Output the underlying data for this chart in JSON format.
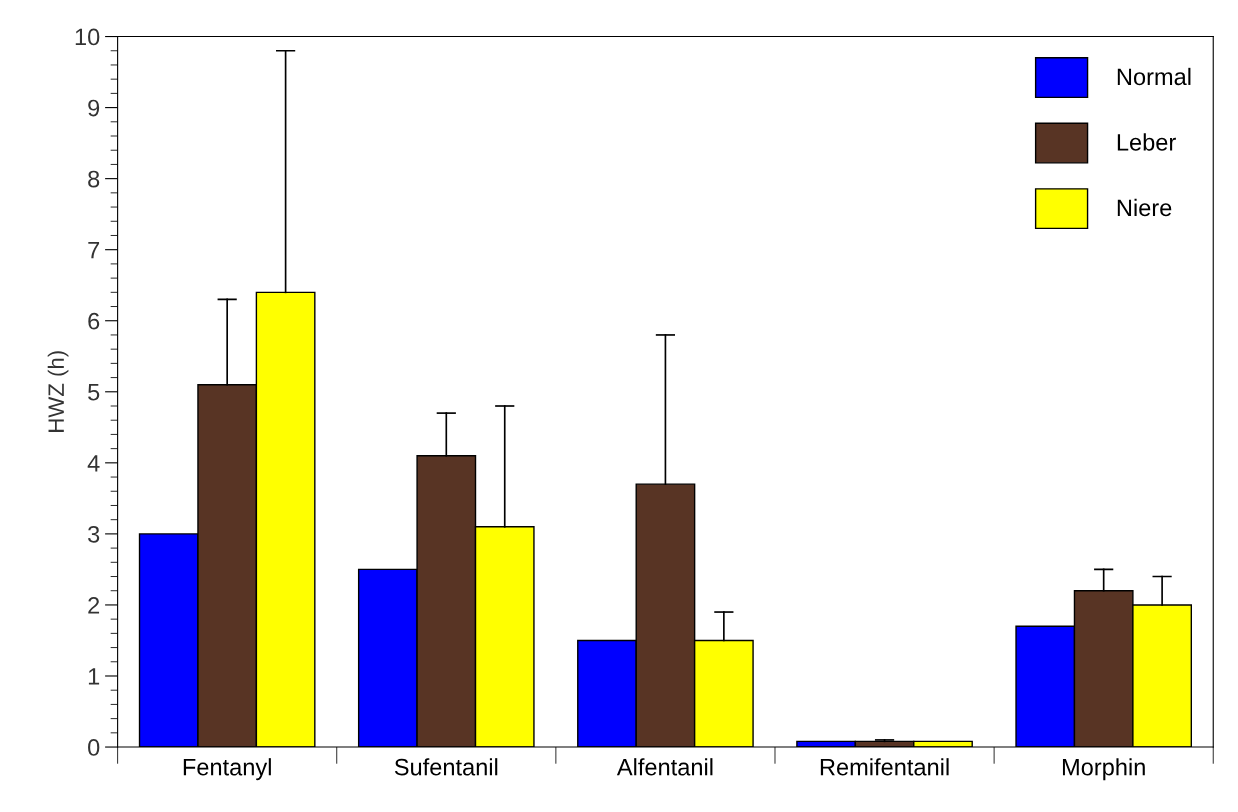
{
  "chart_data": {
    "type": "bar",
    "ylabel": "HWZ (h)",
    "categories": [
      "Fentanyl",
      "Sufentanil",
      "Alfentanil",
      "Remifentanil",
      "Morphin"
    ],
    "series": [
      {
        "name": "Normal",
        "color": "#0000ff",
        "values": [
          3.0,
          2.5,
          1.5,
          0.08,
          1.7
        ]
      },
      {
        "name": "Leber",
        "color": "#583424",
        "values": [
          5.1,
          4.1,
          3.7,
          0.08,
          2.2
        ],
        "errors": [
          [
            5.1,
            6.3
          ],
          [
            4.1,
            4.7
          ],
          [
            3.7,
            5.8
          ],
          [
            0.08,
            0.1
          ],
          [
            2.2,
            2.5
          ]
        ]
      },
      {
        "name": "Niere",
        "color": "#ffff00",
        "values": [
          6.4,
          3.1,
          1.5,
          0.08,
          2.0
        ],
        "errors": [
          [
            6.4,
            9.8
          ],
          [
            3.1,
            4.8
          ],
          [
            1.5,
            1.9
          ],
          null,
          [
            2.0,
            2.4
          ]
        ]
      }
    ],
    "ylim": [
      0,
      10
    ],
    "yticks": [
      0,
      1,
      2,
      3,
      4,
      5,
      6,
      7,
      8,
      9,
      10
    ],
    "grid": false,
    "legend": "top right"
  }
}
